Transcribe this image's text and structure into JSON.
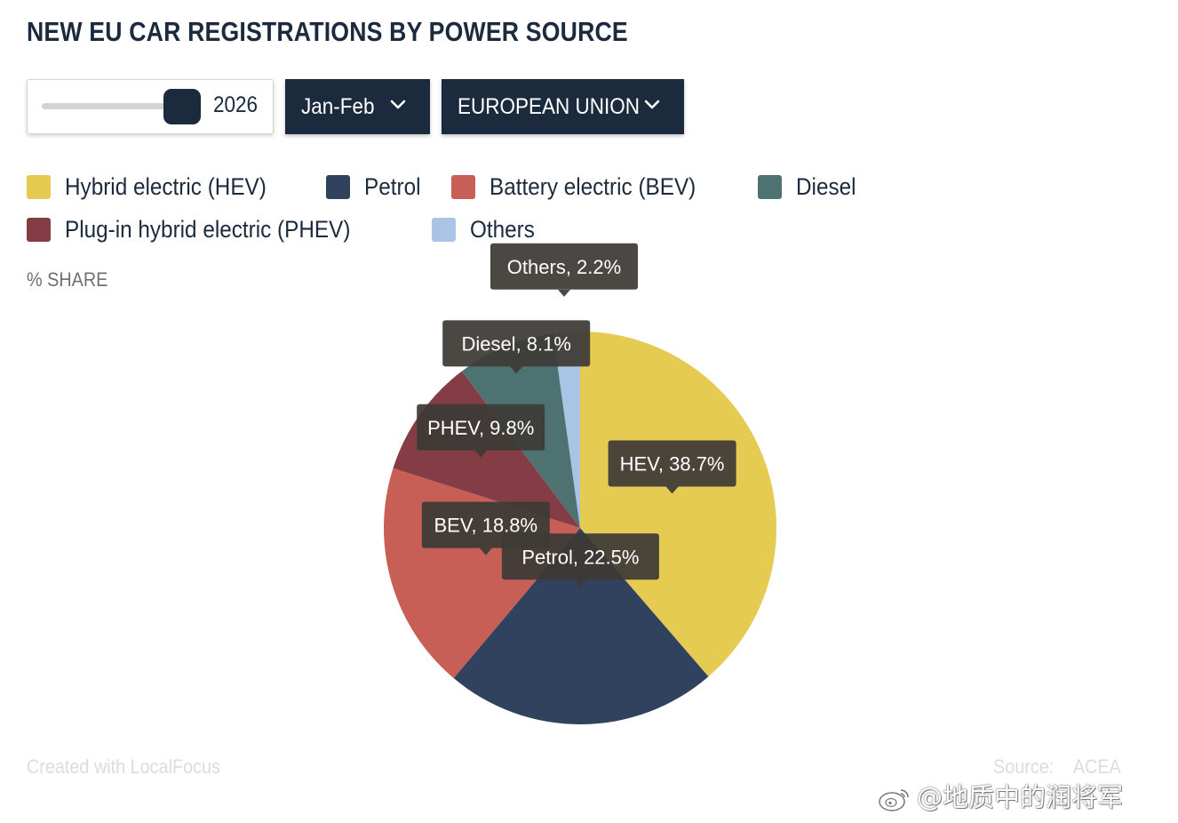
{
  "title": "NEW EU CAR REGISTRATIONS BY POWER SOURCE",
  "controls": {
    "year_value": "2026",
    "period_selected": "Jan-Feb",
    "region_selected": "EUROPEAN UNION",
    "year_slider_position": 1.0
  },
  "share_label": "% SHARE",
  "chart_data": {
    "type": "pie",
    "unit": "%",
    "slices": [
      {
        "key": "hev",
        "name": "Hybrid electric (HEV)",
        "short": "HEV",
        "value": 38.7,
        "label": "HEV, 38.7%",
        "color": "#e6cb52"
      },
      {
        "key": "petrol",
        "name": "Petrol",
        "short": "Petrol",
        "value": 22.5,
        "label": "Petrol, 22.5%",
        "color": "#31425e"
      },
      {
        "key": "bev",
        "name": "Battery electric (BEV)",
        "short": "BEV",
        "value": 18.8,
        "label": "BEV, 18.8%",
        "color": "#c85f56"
      },
      {
        "key": "phev",
        "name": "Plug-in hybrid electric (PHEV)",
        "short": "PHEV",
        "value": 9.8,
        "label": "PHEV, 9.8%",
        "color": "#843d44"
      },
      {
        "key": "diesel",
        "name": "Diesel",
        "short": "Diesel",
        "value": 8.1,
        "label": "Diesel, 8.1%",
        "color": "#4e7272"
      },
      {
        "key": "others",
        "name": "Others",
        "short": "Others",
        "value": 2.2,
        "label": "Others, 2.2%",
        "color": "#aac4e6"
      }
    ]
  },
  "legend": {
    "items": [
      {
        "label": "Hybrid electric (HEV)",
        "color": "#e6cb52"
      },
      {
        "label": "Petrol",
        "color": "#31425e"
      },
      {
        "label": "Battery electric (BEV)",
        "color": "#c85f56"
      },
      {
        "label": "Diesel",
        "color": "#4e7272"
      },
      {
        "label": "Plug-in hybrid electric (PHEV)",
        "color": "#843d44"
      },
      {
        "label": "Others",
        "color": "#aac4e6"
      }
    ]
  },
  "footer": {
    "credit": "Created with LocalFocus",
    "source_label": "Source:",
    "source_value": "ACEA"
  },
  "watermark": "@地质中的润将军",
  "colors": {
    "accent": "#1b2a3c",
    "tooltip_bg": "#3d3a36"
  }
}
